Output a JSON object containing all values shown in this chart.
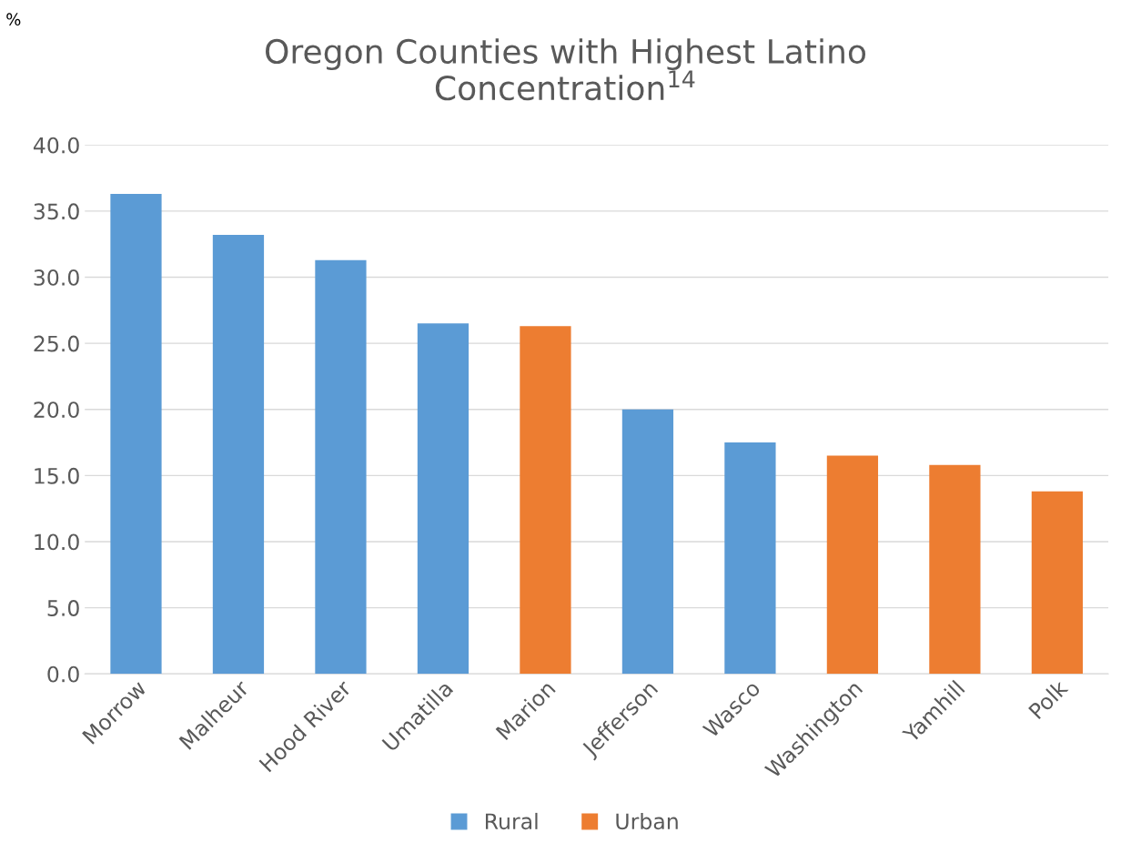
{
  "chart_data": {
    "type": "bar",
    "title": "Oregon Counties with Highest Latino\nConcentration$^{14}$",
    "annotations": [
      "%"
    ],
    "categories": [
      "Morrow",
      "Malheur",
      "Hood River",
      "Umatilla",
      "Marion",
      "Jefferson",
      "Wasco",
      "Washington",
      "Yamhill",
      "Polk"
    ],
    "series": [
      {
        "name": "Rural",
        "color": "#5b9bd5",
        "values": [
          36.3,
          33.2,
          31.3,
          26.5,
          null,
          20.0,
          17.5,
          null,
          null,
          null
        ]
      },
      {
        "name": "Urban",
        "color": "#ed7d31",
        "values": [
          null,
          null,
          null,
          null,
          26.3,
          null,
          null,
          16.5,
          15.8,
          13.8
        ]
      }
    ],
    "ylim": [
      0,
      40
    ],
    "yticks": [
      {
        "value": 0,
        "label": "0.0"
      },
      {
        "value": 5,
        "label": "5.0"
      },
      {
        "value": 10,
        "label": "10.0"
      },
      {
        "value": 15,
        "label": "15.0"
      },
      {
        "value": 20,
        "label": "20.0"
      },
      {
        "value": 25,
        "label": "25.0"
      },
      {
        "value": 30,
        "label": "30.0"
      },
      {
        "value": 35,
        "label": "35.0"
      },
      {
        "value": 40,
        "label": "40.0"
      }
    ],
    "grid": "y",
    "legend": "bottom"
  }
}
